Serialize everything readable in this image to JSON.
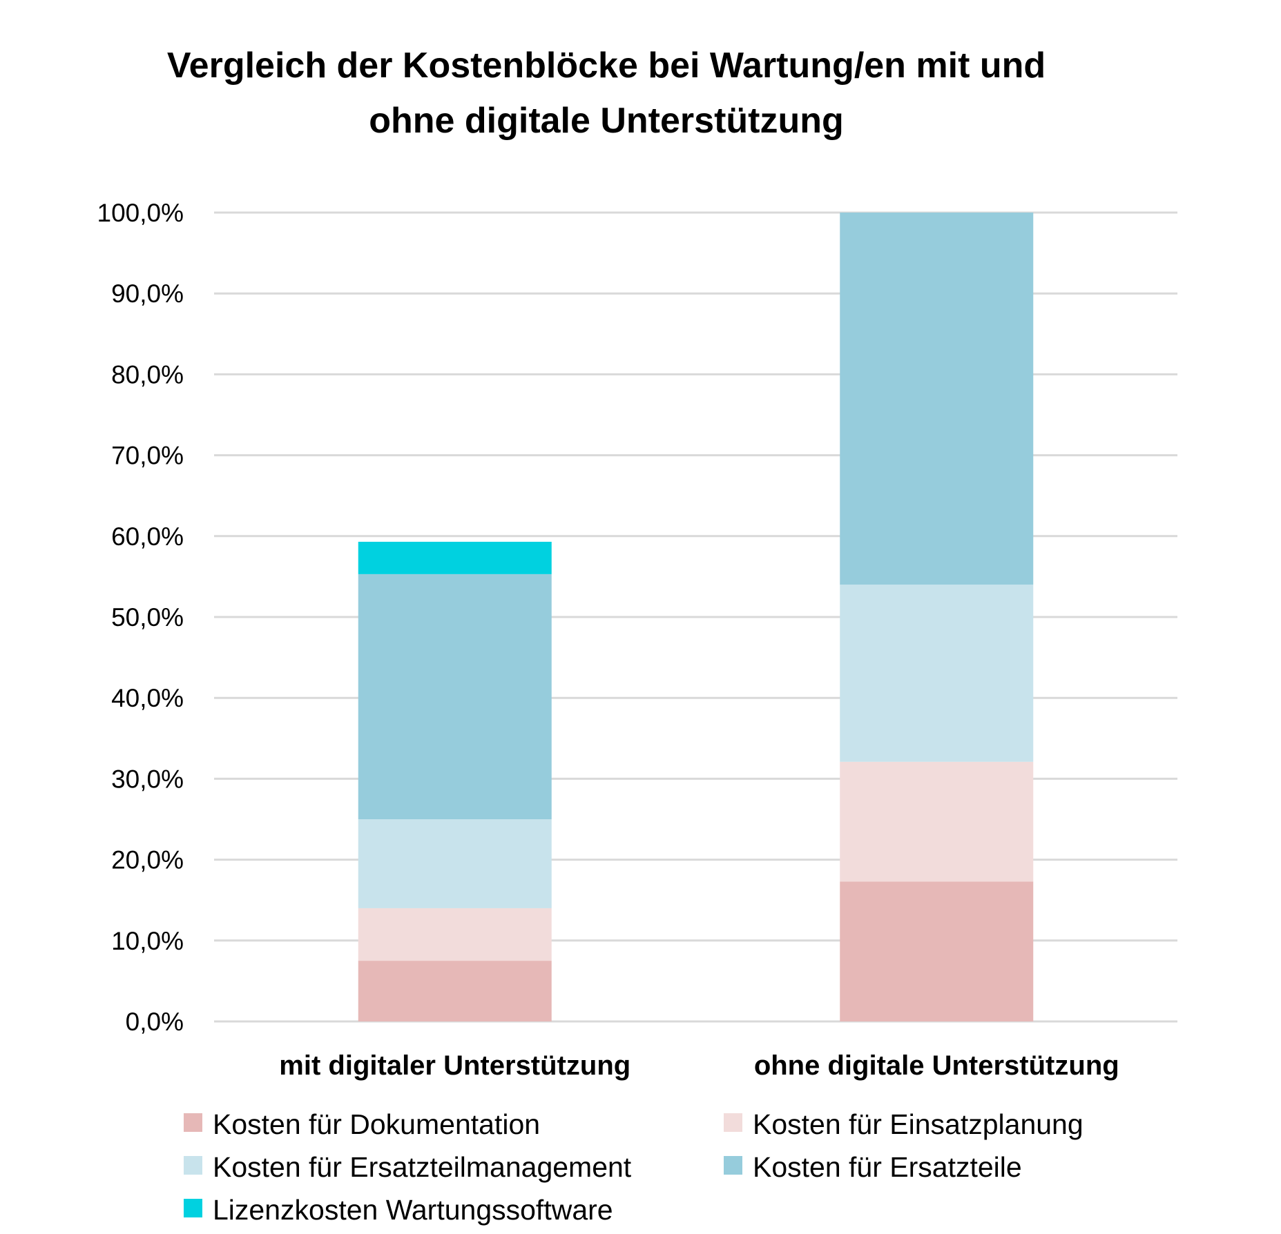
{
  "chart_data": {
    "type": "bar",
    "stacked": true,
    "title": "Vergleich der Kostenblöcke bei Wartung/en mit und ohne digitale Unterstützung",
    "title_lines": [
      "Vergleich der Kostenblöcke bei Wartung/en mit und",
      "ohne digitale Unterstützung"
    ],
    "categories": [
      "mit digitaler Unterstützung",
      "ohne digitale Unterstützung"
    ],
    "ylim": [
      0,
      100
    ],
    "yticks": [
      "0,0%",
      "10,0%",
      "20,0%",
      "30,0%",
      "40,0%",
      "50,0%",
      "60,0%",
      "70,0%",
      "80,0%",
      "90,0%",
      "100,0%"
    ],
    "grid": true,
    "legend_position": "bottom",
    "series": [
      {
        "name": "Kosten für Dokumentation",
        "color": "#e6b8b7",
        "values": [
          7.5,
          17.3
        ]
      },
      {
        "name": "Kosten für Einsatzplanung",
        "color": "#f2dcdb",
        "values": [
          6.5,
          14.8
        ]
      },
      {
        "name": "Kosten für Ersatzteilmanagement",
        "color": "#c8e3ec",
        "values": [
          11.0,
          21.9
        ]
      },
      {
        "name": "Kosten für Ersatzteile",
        "color": "#96ccdc",
        "values": [
          30.3,
          46.0
        ]
      },
      {
        "name": "Lizenzkosten Wartungssoftware",
        "color": "#00d1e0",
        "values": [
          4.0,
          0
        ]
      }
    ]
  }
}
